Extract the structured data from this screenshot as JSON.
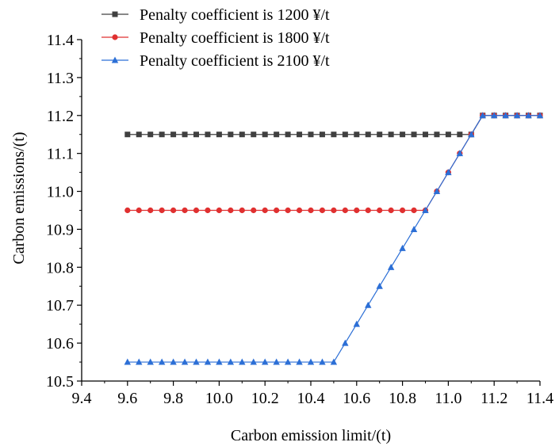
{
  "chart_data": {
    "type": "line",
    "title": "",
    "xlabel": "Carbon emission limit/(t)",
    "ylabel": "Carbon emissions/(t)",
    "xlim": [
      9.4,
      11.4
    ],
    "ylim": [
      10.5,
      11.4
    ],
    "x_ticks": [
      "9.4",
      "9.6",
      "9.8",
      "10.0",
      "10.2",
      "10.4",
      "10.6",
      "10.8",
      "11.0",
      "11.2",
      "11.4"
    ],
    "y_ticks": [
      "10.5",
      "10.6",
      "10.7",
      "10.8",
      "10.9",
      "11.0",
      "11.1",
      "11.2",
      "11.3",
      "11.4"
    ],
    "grid": false,
    "legend_position": "top-left",
    "x": [
      9.6,
      9.65,
      9.7,
      9.75,
      9.8,
      9.85,
      9.9,
      9.95,
      10.0,
      10.05,
      10.1,
      10.15,
      10.2,
      10.25,
      10.3,
      10.35,
      10.4,
      10.45,
      10.5,
      10.55,
      10.6,
      10.65,
      10.7,
      10.75,
      10.8,
      10.85,
      10.9,
      10.95,
      11.0,
      11.05,
      11.1,
      11.15,
      11.2,
      11.25,
      11.3,
      11.35,
      11.4
    ],
    "series": [
      {
        "name": "Penalty coefficient is 1200 ¥/t",
        "color": "#404040",
        "marker": "square",
        "values": [
          11.15,
          11.15,
          11.15,
          11.15,
          11.15,
          11.15,
          11.15,
          11.15,
          11.15,
          11.15,
          11.15,
          11.15,
          11.15,
          11.15,
          11.15,
          11.15,
          11.15,
          11.15,
          11.15,
          11.15,
          11.15,
          11.15,
          11.15,
          11.15,
          11.15,
          11.15,
          11.15,
          11.15,
          11.15,
          11.15,
          11.15,
          11.2,
          11.2,
          11.2,
          11.2,
          11.2,
          11.2
        ]
      },
      {
        "name": "Penalty coefficient is 1800 ¥/t",
        "color": "#e03030",
        "marker": "circle",
        "values": [
          10.95,
          10.95,
          10.95,
          10.95,
          10.95,
          10.95,
          10.95,
          10.95,
          10.95,
          10.95,
          10.95,
          10.95,
          10.95,
          10.95,
          10.95,
          10.95,
          10.95,
          10.95,
          10.95,
          10.95,
          10.95,
          10.95,
          10.95,
          10.95,
          10.95,
          10.95,
          10.95,
          11.0,
          11.05,
          11.1,
          11.15,
          11.2,
          11.2,
          11.2,
          11.2,
          11.2,
          11.2
        ]
      },
      {
        "name": "Penalty coefficient is 2100 ¥/t",
        "color": "#2c6fd6",
        "marker": "triangle",
        "values": [
          10.55,
          10.55,
          10.55,
          10.55,
          10.55,
          10.55,
          10.55,
          10.55,
          10.55,
          10.55,
          10.55,
          10.55,
          10.55,
          10.55,
          10.55,
          10.55,
          10.55,
          10.55,
          10.55,
          10.6,
          10.65,
          10.7,
          10.75,
          10.8,
          10.85,
          10.9,
          10.95,
          11.0,
          11.05,
          11.1,
          11.15,
          11.2,
          11.2,
          11.2,
          11.2,
          11.2,
          11.2
        ]
      }
    ]
  }
}
